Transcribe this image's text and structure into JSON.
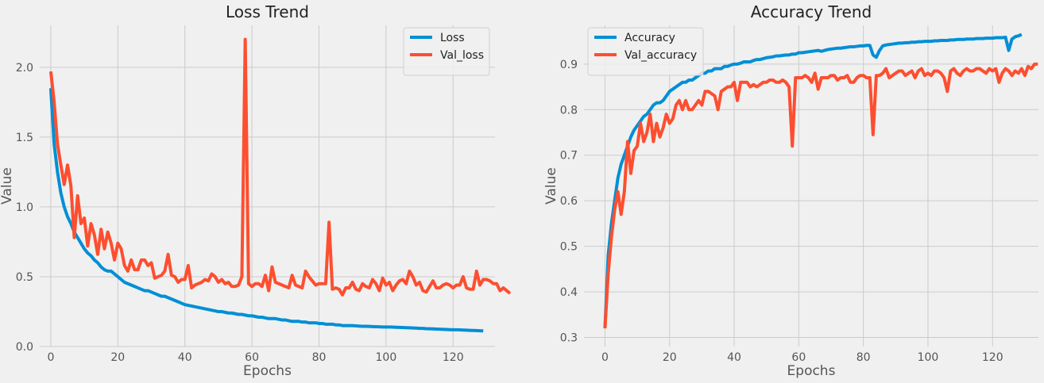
{
  "chart_data": [
    {
      "type": "line",
      "title": "Loss Trend",
      "xlabel": "Epochs",
      "ylabel": "Value",
      "xlim": [
        -3.3,
        132.5
      ],
      "ylim": [
        0.0,
        2.3
      ],
      "xticks": [
        0,
        20,
        40,
        60,
        80,
        100,
        120
      ],
      "yticks": [
        0.0,
        0.5,
        1.0,
        1.5,
        2.0
      ],
      "ytick_labels": [
        "0.0",
        "0.5",
        "1.0",
        "1.5",
        "2.0"
      ],
      "grid": true,
      "legend": "top-right",
      "series": [
        {
          "name": "Loss",
          "color": "#008fd5",
          "values": [
            1.85,
            1.45,
            1.25,
            1.1,
            1.0,
            0.93,
            0.88,
            0.82,
            0.78,
            0.74,
            0.7,
            0.67,
            0.65,
            0.62,
            0.6,
            0.57,
            0.55,
            0.54,
            0.54,
            0.52,
            0.5,
            0.48,
            0.46,
            0.45,
            0.44,
            0.43,
            0.42,
            0.41,
            0.4,
            0.4,
            0.39,
            0.38,
            0.37,
            0.36,
            0.36,
            0.35,
            0.34,
            0.33,
            0.32,
            0.31,
            0.3,
            0.295,
            0.29,
            0.285,
            0.28,
            0.275,
            0.27,
            0.265,
            0.26,
            0.255,
            0.25,
            0.25,
            0.245,
            0.24,
            0.24,
            0.235,
            0.23,
            0.23,
            0.225,
            0.22,
            0.22,
            0.215,
            0.21,
            0.21,
            0.205,
            0.2,
            0.2,
            0.2,
            0.195,
            0.19,
            0.19,
            0.185,
            0.18,
            0.18,
            0.18,
            0.175,
            0.175,
            0.17,
            0.17,
            0.17,
            0.165,
            0.165,
            0.16,
            0.16,
            0.16,
            0.155,
            0.155,
            0.15,
            0.15,
            0.15,
            0.15,
            0.148,
            0.146,
            0.145,
            0.145,
            0.144,
            0.143,
            0.142,
            0.141,
            0.14,
            0.14,
            0.14,
            0.139,
            0.138,
            0.137,
            0.136,
            0.135,
            0.134,
            0.133,
            0.132,
            0.13,
            0.13,
            0.128,
            0.127,
            0.126,
            0.125,
            0.124,
            0.123,
            0.122,
            0.121,
            0.12,
            0.12,
            0.119,
            0.118,
            0.117,
            0.116,
            0.115,
            0.114,
            0.113,
            0.112
          ]
        },
        {
          "name": "Val_loss",
          "color": "#fc4f30",
          "values": [
            1.97,
            1.75,
            1.45,
            1.3,
            1.16,
            1.3,
            1.15,
            0.78,
            1.08,
            0.88,
            0.92,
            0.72,
            0.88,
            0.8,
            0.66,
            0.84,
            0.7,
            0.82,
            0.74,
            0.62,
            0.74,
            0.7,
            0.58,
            0.54,
            0.62,
            0.55,
            0.55,
            0.62,
            0.62,
            0.58,
            0.6,
            0.49,
            0.5,
            0.51,
            0.54,
            0.66,
            0.51,
            0.5,
            0.46,
            0.48,
            0.48,
            0.58,
            0.42,
            0.44,
            0.45,
            0.46,
            0.48,
            0.47,
            0.52,
            0.5,
            0.46,
            0.48,
            0.45,
            0.46,
            0.43,
            0.43,
            0.44,
            0.5,
            2.2,
            0.45,
            0.43,
            0.45,
            0.45,
            0.43,
            0.51,
            0.4,
            0.57,
            0.46,
            0.45,
            0.44,
            0.43,
            0.42,
            0.51,
            0.44,
            0.43,
            0.42,
            0.54,
            0.5,
            0.47,
            0.44,
            0.45,
            0.45,
            0.45,
            0.89,
            0.41,
            0.42,
            0.41,
            0.37,
            0.42,
            0.42,
            0.46,
            0.41,
            0.4,
            0.45,
            0.43,
            0.42,
            0.48,
            0.45,
            0.4,
            0.49,
            0.44,
            0.46,
            0.4,
            0.44,
            0.47,
            0.48,
            0.45,
            0.54,
            0.5,
            0.44,
            0.46,
            0.4,
            0.39,
            0.43,
            0.47,
            0.42,
            0.42,
            0.44,
            0.45,
            0.44,
            0.42,
            0.44,
            0.44,
            0.5,
            0.42,
            0.41,
            0.41,
            0.54,
            0.44,
            0.48,
            0.48,
            0.47,
            0.45,
            0.45,
            0.4,
            0.42,
            0.4,
            0.38
          ]
        }
      ]
    },
    {
      "type": "line",
      "title": "Accuracy Trend",
      "xlabel": "Epochs",
      "ylabel": "Value",
      "xlim": [
        -6.5,
        134.2
      ],
      "ylim": [
        0.28,
        0.985
      ],
      "xticks": [
        0,
        20,
        40,
        60,
        80,
        100,
        120
      ],
      "yticks": [
        0.3,
        0.4,
        0.5,
        0.6,
        0.7,
        0.8,
        0.9
      ],
      "ytick_labels": [
        "0.3",
        "0.4",
        "0.5",
        "0.6",
        "0.7",
        "0.8",
        "0.9"
      ],
      "grid": true,
      "legend": "top-left",
      "series": [
        {
          "name": "Accuracy",
          "color": "#008fd5",
          "values": [
            0.32,
            0.48,
            0.55,
            0.6,
            0.65,
            0.68,
            0.7,
            0.72,
            0.74,
            0.755,
            0.765,
            0.775,
            0.785,
            0.79,
            0.8,
            0.81,
            0.815,
            0.815,
            0.82,
            0.83,
            0.84,
            0.845,
            0.85,
            0.855,
            0.86,
            0.86,
            0.865,
            0.865,
            0.87,
            0.875,
            0.88,
            0.88,
            0.885,
            0.885,
            0.89,
            0.89,
            0.89,
            0.895,
            0.895,
            0.898,
            0.9,
            0.9,
            0.902,
            0.905,
            0.905,
            0.905,
            0.908,
            0.91,
            0.91,
            0.912,
            0.914,
            0.915,
            0.916,
            0.918,
            0.918,
            0.919,
            0.92,
            0.92,
            0.922,
            0.922,
            0.925,
            0.925,
            0.926,
            0.927,
            0.928,
            0.929,
            0.93,
            0.928,
            0.93,
            0.932,
            0.933,
            0.934,
            0.935,
            0.935,
            0.936,
            0.937,
            0.938,
            0.938,
            0.939,
            0.94,
            0.94,
            0.941,
            0.941,
            0.92,
            0.915,
            0.93,
            0.94,
            0.942,
            0.943,
            0.944,
            0.945,
            0.946,
            0.946,
            0.947,
            0.947,
            0.948,
            0.948,
            0.949,
            0.949,
            0.95,
            0.95,
            0.95,
            0.951,
            0.951,
            0.952,
            0.952,
            0.952,
            0.953,
            0.953,
            0.954,
            0.954,
            0.954,
            0.955,
            0.955,
            0.955,
            0.956,
            0.956,
            0.956,
            0.957,
            0.957,
            0.957,
            0.958,
            0.958,
            0.958,
            0.959,
            0.93,
            0.955,
            0.96,
            0.962,
            0.965
          ]
        },
        {
          "name": "Val_accuracy",
          "color": "#fc4f30",
          "values": [
            0.32,
            0.44,
            0.52,
            0.58,
            0.62,
            0.57,
            0.62,
            0.73,
            0.66,
            0.71,
            0.72,
            0.77,
            0.73,
            0.75,
            0.79,
            0.73,
            0.77,
            0.74,
            0.76,
            0.79,
            0.77,
            0.78,
            0.81,
            0.82,
            0.8,
            0.82,
            0.8,
            0.8,
            0.81,
            0.82,
            0.81,
            0.84,
            0.84,
            0.835,
            0.83,
            0.8,
            0.84,
            0.845,
            0.85,
            0.85,
            0.86,
            0.82,
            0.86,
            0.86,
            0.86,
            0.85,
            0.855,
            0.85,
            0.855,
            0.86,
            0.86,
            0.865,
            0.865,
            0.86,
            0.86,
            0.865,
            0.86,
            0.85,
            0.72,
            0.87,
            0.87,
            0.87,
            0.875,
            0.87,
            0.86,
            0.88,
            0.845,
            0.87,
            0.87,
            0.87,
            0.875,
            0.875,
            0.865,
            0.87,
            0.87,
            0.875,
            0.86,
            0.86,
            0.87,
            0.875,
            0.875,
            0.87,
            0.87,
            0.745,
            0.875,
            0.875,
            0.88,
            0.89,
            0.87,
            0.875,
            0.88,
            0.885,
            0.885,
            0.875,
            0.88,
            0.885,
            0.87,
            0.885,
            0.89,
            0.875,
            0.88,
            0.875,
            0.885,
            0.885,
            0.88,
            0.87,
            0.84,
            0.885,
            0.89,
            0.88,
            0.875,
            0.885,
            0.89,
            0.885,
            0.885,
            0.89,
            0.89,
            0.885,
            0.88,
            0.89,
            0.885,
            0.89,
            0.86,
            0.88,
            0.89,
            0.885,
            0.875,
            0.885,
            0.88,
            0.89,
            0.875,
            0.895,
            0.89,
            0.9,
            0.9
          ]
        }
      ]
    }
  ]
}
